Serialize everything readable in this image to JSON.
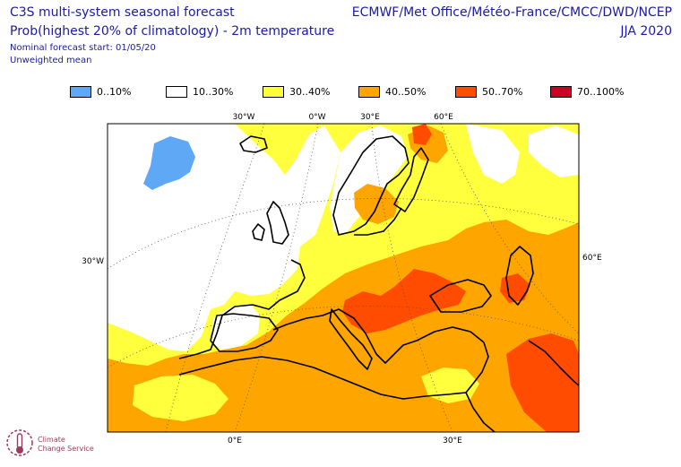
{
  "header": {
    "title_line1": "C3S multi-system seasonal forecast",
    "title_line2": "Prob(highest 20% of climatology) - 2m temperature",
    "meta_line1": "Nominal forecast start: 01/05/20",
    "meta_line2": "Unweighted mean",
    "centres": "ECMWF/Met Office/Météo-France/CMCC/DWD/NCEP",
    "season": "JJA 2020"
  },
  "legend": [
    {
      "label": "0..10%",
      "color": "#5fa8f5"
    },
    {
      "label": "10..30%",
      "color": "#ffffff"
    },
    {
      "label": "30..40%",
      "color": "#ffff3d"
    },
    {
      "label": "40..50%",
      "color": "#ffa500"
    },
    {
      "label": "50..70%",
      "color": "#ff4c00"
    },
    {
      "label": "70..100%",
      "color": "#cc0022"
    }
  ],
  "axis_labels": {
    "top": [
      "30°W",
      "0°W",
      "30°E",
      "60°E"
    ],
    "left": "30°W",
    "right": "60°E",
    "bottom": [
      "0°E",
      "30°E"
    ]
  },
  "logo": {
    "line1": "Climate",
    "line2": "Change Service"
  }
}
